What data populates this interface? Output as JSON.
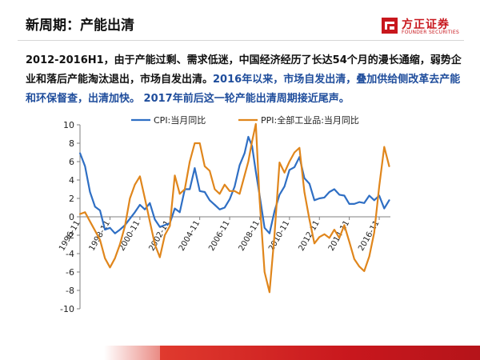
{
  "header": {
    "title": "新周期：产能出清",
    "logo_cn": "方正证券",
    "logo_en": "FOUNDER SECURITIES"
  },
  "summary": {
    "part1": "2012-2016H1，由于产能过剩、需求低迷，中国经济经历了长达54个月的漫长通缩，弱势企业和落后产能淘汰退出，市场自发出清。",
    "part2": "2016年以来，市场自发出清，叠加供给侧改革去产能和环保督查，出清加快。 2017年前后这一轮产能出清周期接近尾声。"
  },
  "colors": {
    "cpi": "#2f6fc4",
    "ppi": "#e0861c",
    "accent": "#c8171d",
    "summary_blue": "#1f4d9c"
  },
  "chart_data": {
    "type": "line",
    "title": "",
    "xlabel": "",
    "ylabel": "",
    "ylim": [
      -10,
      10
    ],
    "yticks": [
      -10,
      -8,
      -6,
      -4,
      -2,
      0,
      2,
      4,
      6,
      8,
      10
    ],
    "xlim": [
      1996.83,
      2017.58
    ],
    "xticks": [
      "1996-11",
      "1998-11",
      "2000-11",
      "2002-11",
      "2004-11",
      "2006-11",
      "2008-11",
      "2010-11",
      "2012-11",
      "2014-11",
      "2016-11"
    ],
    "legend_position": "top",
    "grid": false,
    "series": [
      {
        "name": "CPI:当月同比",
        "color": "#2f6fc4",
        "x": [
          "1996-11",
          "1997-03",
          "1997-07",
          "1997-11",
          "1998-03",
          "1998-07",
          "1998-11",
          "1999-03",
          "1999-07",
          "1999-11",
          "2000-03",
          "2000-07",
          "2000-11",
          "2001-03",
          "2001-07",
          "2001-11",
          "2002-03",
          "2002-07",
          "2002-11",
          "2003-03",
          "2003-07",
          "2003-11",
          "2004-03",
          "2004-07",
          "2004-11",
          "2005-03",
          "2005-07",
          "2005-11",
          "2006-03",
          "2006-07",
          "2006-11",
          "2007-03",
          "2007-07",
          "2007-11",
          "2008-02",
          "2008-05",
          "2008-08",
          "2008-11",
          "2009-03",
          "2009-07",
          "2009-11",
          "2010-03",
          "2010-07",
          "2010-11",
          "2011-03",
          "2011-07",
          "2011-11",
          "2012-03",
          "2012-07",
          "2012-11",
          "2013-03",
          "2013-07",
          "2013-11",
          "2014-03",
          "2014-07",
          "2014-11",
          "2015-03",
          "2015-07",
          "2015-11",
          "2016-03",
          "2016-07",
          "2016-11",
          "2017-03",
          "2017-07"
        ],
        "y": [
          6.9,
          5.5,
          2.7,
          1.1,
          0.7,
          -1.4,
          -1.2,
          -1.8,
          -1.4,
          -0.9,
          -0.2,
          0.5,
          1.3,
          0.8,
          1.5,
          -0.3,
          -1.1,
          -0.9,
          -0.7,
          0.9,
          0.5,
          3.0,
          3.0,
          5.3,
          2.8,
          2.7,
          1.8,
          1.3,
          0.8,
          1.0,
          1.9,
          3.3,
          5.6,
          6.9,
          8.7,
          7.7,
          4.9,
          2.4,
          -1.2,
          -1.8,
          0.6,
          2.4,
          3.3,
          5.1,
          5.4,
          6.5,
          4.2,
          3.6,
          1.8,
          2.0,
          2.1,
          2.7,
          3.0,
          2.4,
          2.3,
          1.4,
          1.4,
          1.6,
          1.5,
          2.3,
          1.8,
          2.3,
          0.9,
          1.8
        ]
      },
      {
        "name": "PPI:全部工业品:当月同比",
        "color": "#e0861c",
        "x": [
          "1996-11",
          "1997-03",
          "1997-07",
          "1997-11",
          "1998-03",
          "1998-07",
          "1998-11",
          "1999-03",
          "1999-07",
          "1999-11",
          "2000-03",
          "2000-07",
          "2000-11",
          "2001-03",
          "2001-07",
          "2001-11",
          "2002-03",
          "2002-07",
          "2002-11",
          "2003-03",
          "2003-07",
          "2003-11",
          "2004-03",
          "2004-07",
          "2004-11",
          "2005-03",
          "2005-07",
          "2005-11",
          "2006-03",
          "2006-07",
          "2006-11",
          "2007-03",
          "2007-07",
          "2007-11",
          "2008-02",
          "2008-05",
          "2008-08",
          "2008-11",
          "2009-03",
          "2009-07",
          "2009-11",
          "2010-03",
          "2010-07",
          "2010-11",
          "2011-03",
          "2011-07",
          "2011-11",
          "2012-03",
          "2012-07",
          "2012-11",
          "2013-03",
          "2013-07",
          "2013-11",
          "2014-03",
          "2014-07",
          "2014-11",
          "2015-03",
          "2015-07",
          "2015-11",
          "2016-03",
          "2016-07",
          "2016-11",
          "2017-03",
          "2017-07"
        ],
        "y": [
          0.3,
          0.5,
          -0.5,
          -1.5,
          -2.5,
          -4.5,
          -5.5,
          -4.5,
          -3.0,
          -1.0,
          2.0,
          3.5,
          4.4,
          2.0,
          -0.5,
          -3.0,
          -4.4,
          -2.0,
          -1.0,
          4.5,
          2.5,
          3.0,
          6.0,
          8.0,
          8.0,
          5.5,
          5.0,
          3.0,
          2.5,
          3.5,
          2.8,
          2.8,
          2.5,
          4.5,
          6.0,
          8.2,
          10.1,
          2.0,
          -6.0,
          -8.2,
          -2.0,
          5.9,
          4.8,
          6.0,
          7.0,
          7.5,
          2.7,
          -0.3,
          -2.9,
          -2.2,
          -1.9,
          -2.3,
          -1.4,
          -2.3,
          -0.9,
          -2.7,
          -4.6,
          -5.4,
          -5.9,
          -4.3,
          -1.7,
          3.3,
          7.6,
          5.5
        ]
      }
    ]
  }
}
